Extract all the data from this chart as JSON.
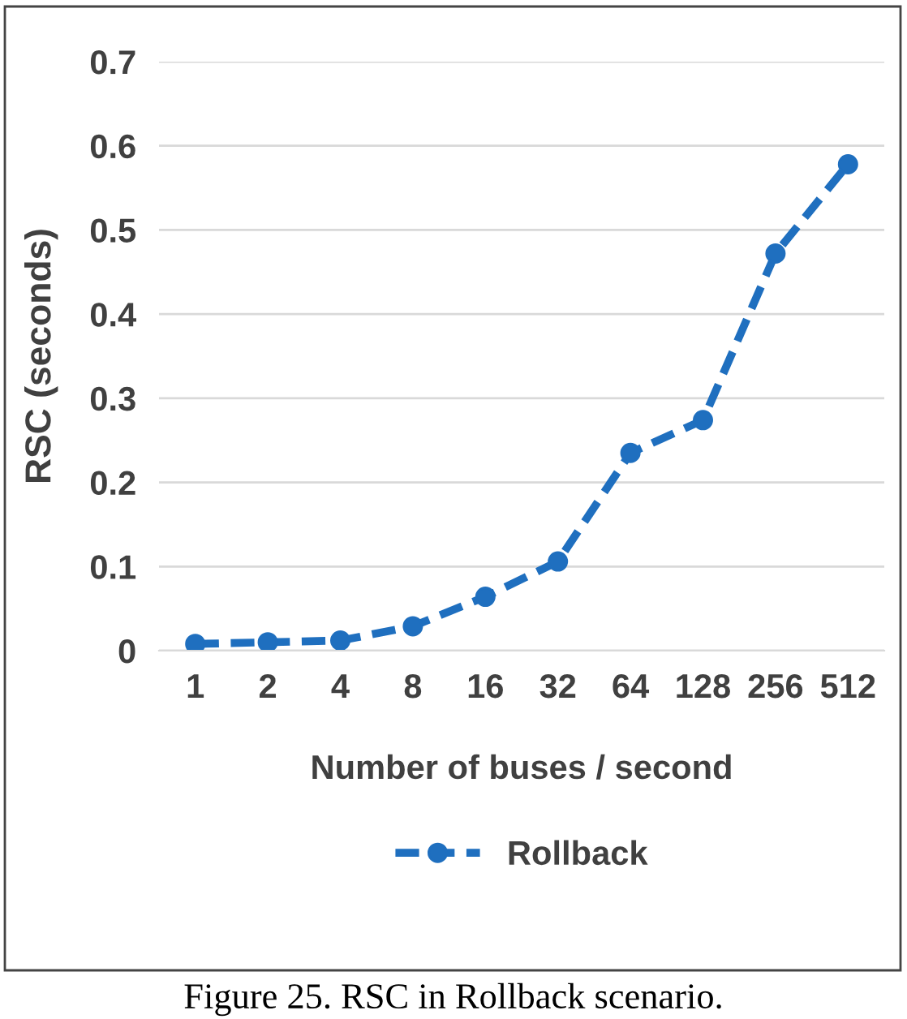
{
  "chart_data": {
    "type": "line",
    "xlabel": "Number of buses / second",
    "ylabel": "RSC (seconds)",
    "categories": [
      "1",
      "2",
      "4",
      "8",
      "16",
      "32",
      "64",
      "128",
      "256",
      "512"
    ],
    "series": [
      {
        "name": "Rollback",
        "color": "#1f6fbf",
        "values": [
          0.008,
          0.01,
          0.012,
          0.029,
          0.064,
          0.106,
          0.235,
          0.274,
          0.472,
          0.578
        ]
      }
    ],
    "ylim": [
      0,
      0.7
    ],
    "yticks": [
      0,
      0.1,
      0.2,
      0.3,
      0.4,
      0.5,
      0.6,
      0.7
    ],
    "grid": "y",
    "legend": "bottom",
    "marker": "circle",
    "line_style": "dashed",
    "annotations": [
      "Figure 25. RSC in Rollback scenario."
    ]
  }
}
